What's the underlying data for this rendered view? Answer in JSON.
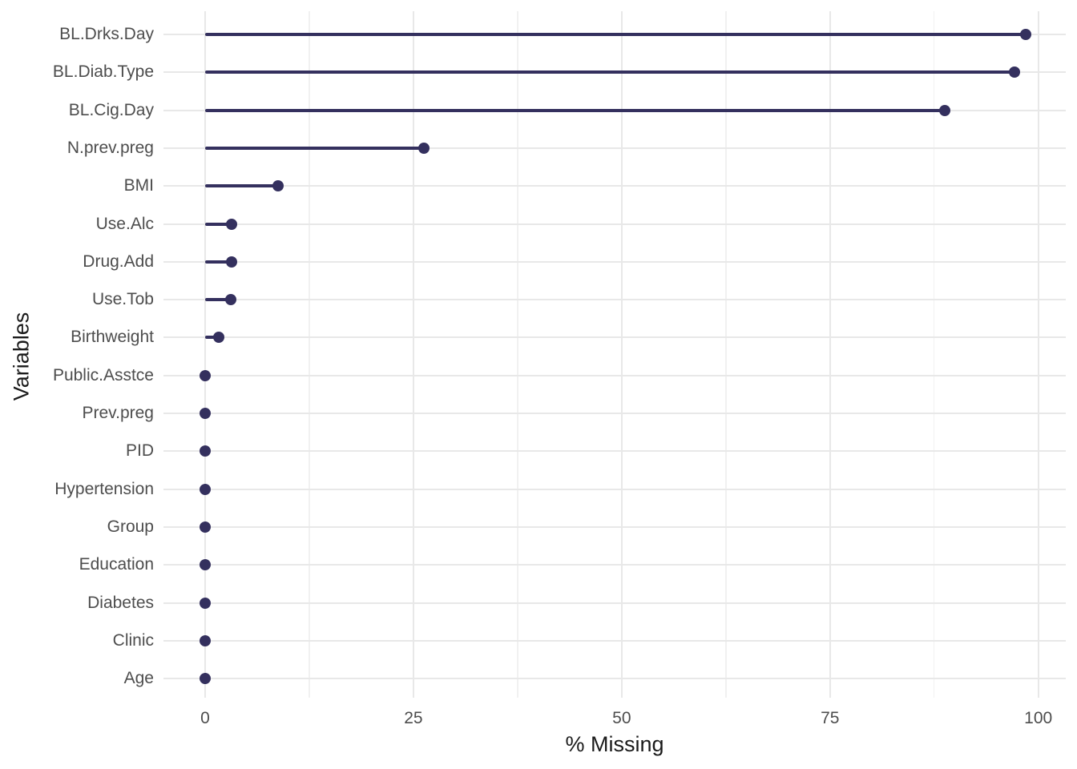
{
  "chart_data": {
    "type": "lollipop",
    "orientation": "horizontal",
    "title": "",
    "xlabel": "% Missing",
    "ylabel": "Variables",
    "categories": [
      "BL.Drks.Day",
      "BL.Diab.Type",
      "BL.Cig.Day",
      "N.prev.preg",
      "BMI",
      "Use.Alc",
      "Drug.Add",
      "Use.Tob",
      "Birthweight",
      "Public.Asstce",
      "Prev.preg",
      "PID",
      "Hypertension",
      "Group",
      "Education",
      "Diabetes",
      "Clinic",
      "Age"
    ],
    "values": [
      98.5,
      97.1,
      88.8,
      26.3,
      8.8,
      3.2,
      3.2,
      3.1,
      1.6,
      0,
      0,
      0,
      0,
      0,
      0,
      0,
      0,
      0
    ],
    "x_ticks": [
      0,
      25,
      50,
      75,
      100
    ],
    "x_minor_ticks": [
      12.5,
      37.5,
      62.5,
      87.5
    ],
    "xlim": [
      -5,
      103.3
    ],
    "legend": "none",
    "grid": {
      "major": true,
      "minor": true
    },
    "colors": {
      "point": "#34305e",
      "stem": "#34305e",
      "grid_major": "#e8e8e8",
      "grid_minor": "#f1f1f1",
      "axis_text": "#4d4d4d",
      "axis_title": "#1a1a1a",
      "background": "#ffffff"
    }
  }
}
